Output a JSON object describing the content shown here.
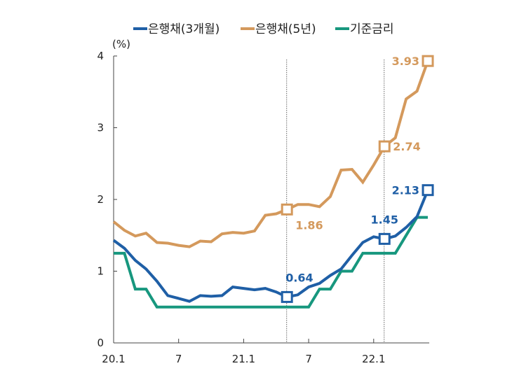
{
  "chart_data": {
    "type": "line",
    "title": "",
    "unit_label": "(%)",
    "xlabel": "",
    "ylabel": "",
    "ylim": [
      0,
      4
    ],
    "yticks": [
      "0",
      "1",
      "2",
      "3",
      "4"
    ],
    "x": [
      "20.1",
      "20.2",
      "20.3",
      "20.4",
      "20.5",
      "20.6",
      "20.7",
      "20.8",
      "20.9",
      "20.10",
      "20.11",
      "20.12",
      "21.1",
      "21.2",
      "21.3",
      "21.4",
      "21.5",
      "21.6",
      "21.7",
      "21.8",
      "21.9",
      "21.10",
      "21.11",
      "21.12",
      "22.1",
      "22.2",
      "22.3",
      "22.4",
      "22.5",
      "22.6"
    ],
    "xtick_labels": [
      {
        "index": 0,
        "label": "20.1"
      },
      {
        "index": 6,
        "label": "7"
      },
      {
        "index": 12,
        "label": "21.1"
      },
      {
        "index": 18,
        "label": "7"
      },
      {
        "index": 24,
        "label": "22.1"
      }
    ],
    "grid": false,
    "legend_position": "top",
    "reference_lines": [
      16,
      25
    ],
    "series": [
      {
        "name": "은행채(3개월)",
        "color": "#1f5fa6",
        "values": [
          1.43,
          1.32,
          1.15,
          1.03,
          0.86,
          0.66,
          0.62,
          0.58,
          0.66,
          0.65,
          0.66,
          0.78,
          0.76,
          0.74,
          0.76,
          0.71,
          0.64,
          0.67,
          0.78,
          0.83,
          0.94,
          1.03,
          1.22,
          1.4,
          1.48,
          1.45,
          1.49,
          1.61,
          1.76,
          2.13
        ],
        "annotations": [
          {
            "index": 16,
            "label": "0.64"
          },
          {
            "index": 25,
            "label": "1.45"
          },
          {
            "index": 29,
            "label": "2.13"
          }
        ]
      },
      {
        "name": "은행채(5년)",
        "color": "#d4995c",
        "values": [
          1.69,
          1.57,
          1.49,
          1.53,
          1.4,
          1.39,
          1.36,
          1.34,
          1.42,
          1.41,
          1.52,
          1.54,
          1.53,
          1.56,
          1.78,
          1.8,
          1.86,
          1.93,
          1.93,
          1.9,
          2.04,
          2.41,
          2.42,
          2.24,
          2.48,
          2.74,
          2.86,
          3.4,
          3.51,
          3.93
        ],
        "annotations": [
          {
            "index": 16,
            "label": "1.86"
          },
          {
            "index": 25,
            "label": "2.74"
          },
          {
            "index": 29,
            "label": "3.93"
          }
        ]
      },
      {
        "name": "기준금리",
        "color": "#17977e",
        "values": [
          1.25,
          1.25,
          0.75,
          0.75,
          0.5,
          0.5,
          0.5,
          0.5,
          0.5,
          0.5,
          0.5,
          0.5,
          0.5,
          0.5,
          0.5,
          0.5,
          0.5,
          0.5,
          0.5,
          0.75,
          0.75,
          1.0,
          1.0,
          1.25,
          1.25,
          1.25,
          1.25,
          1.5,
          1.75,
          1.75
        ],
        "annotations": []
      }
    ]
  }
}
